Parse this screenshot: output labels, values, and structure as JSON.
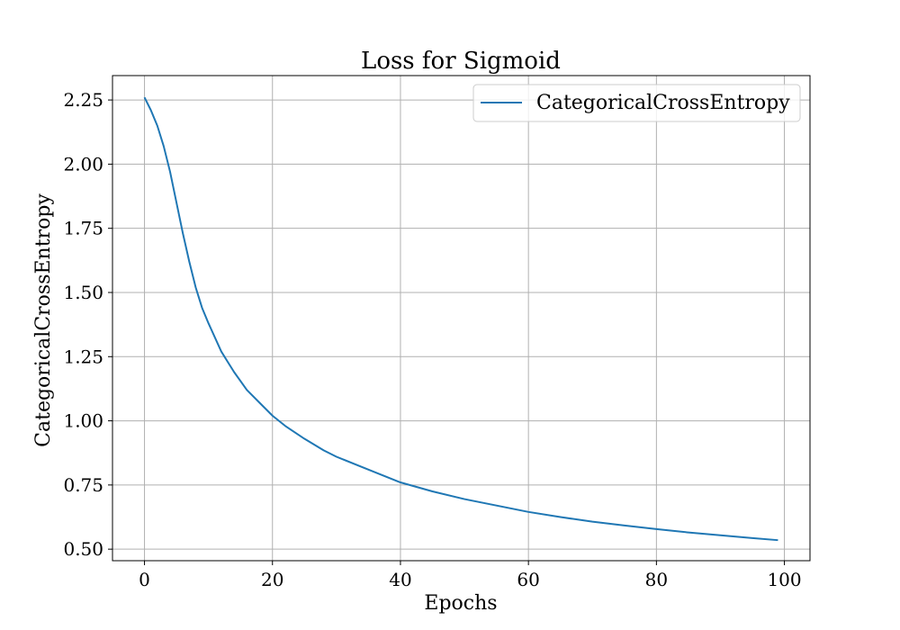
{
  "chart_data": {
    "type": "line",
    "title": "Loss for Sigmoid",
    "xlabel": "Epochs",
    "ylabel": "CategoricalCrossEntropy",
    "xlim": [
      -5,
      104
    ],
    "ylim": [
      0.455,
      2.345
    ],
    "xticks": [
      0,
      20,
      40,
      60,
      80,
      100
    ],
    "yticks": [
      0.5,
      0.75,
      1.0,
      1.25,
      1.5,
      1.75,
      2.0,
      2.25
    ],
    "xtick_labels": [
      "0",
      "20",
      "40",
      "60",
      "80",
      "100"
    ],
    "ytick_labels": [
      "0.50",
      "0.75",
      "1.00",
      "1.25",
      "1.50",
      "1.75",
      "2.00",
      "2.25"
    ],
    "grid": true,
    "legend_position": "top-right",
    "series": [
      {
        "name": "CategoricalCrossEntropy",
        "color": "#1f77b4",
        "x": [
          0,
          1,
          2,
          3,
          4,
          5,
          6,
          7,
          8,
          9,
          10,
          12,
          14,
          16,
          18,
          20,
          22,
          25,
          28,
          30,
          35,
          40,
          45,
          50,
          55,
          60,
          65,
          70,
          75,
          80,
          85,
          90,
          95,
          99
        ],
        "y": [
          2.26,
          2.21,
          2.15,
          2.07,
          1.97,
          1.85,
          1.73,
          1.62,
          1.52,
          1.44,
          1.38,
          1.27,
          1.19,
          1.12,
          1.07,
          1.02,
          0.98,
          0.93,
          0.885,
          0.86,
          0.81,
          0.76,
          0.725,
          0.695,
          0.67,
          0.645,
          0.625,
          0.607,
          0.592,
          0.578,
          0.565,
          0.554,
          0.543,
          0.535
        ]
      }
    ]
  }
}
